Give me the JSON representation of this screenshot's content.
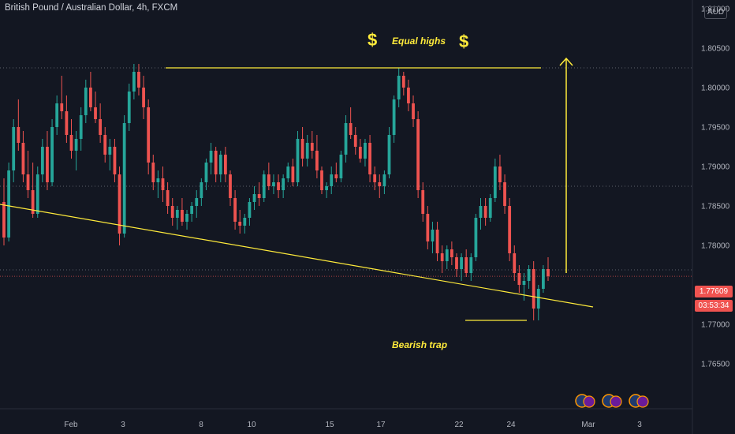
{
  "header": {
    "title": "British Pound / Australian Dollar, 4h, FXCM",
    "currency_badge": "AUD"
  },
  "price_tags": {
    "last_price": "1.77609",
    "countdown": "03:53:34"
  },
  "annotations": {
    "equal_highs": "Equal highs",
    "dollar_symbol": "$",
    "bearish_trap": "Bearish trap"
  },
  "colors": {
    "background": "#131722",
    "up_candle": "#26a69a",
    "down_candle": "#ef5350",
    "annotation": "#ffeb3b",
    "grid": "#363a45",
    "axis_text": "#b2b5be"
  },
  "chart_data": {
    "type": "candlestick",
    "symbol": "GBPAUD",
    "timeframe": "4h",
    "source": "FXCM",
    "y_axis": {
      "ticks": [
        "1.81000",
        "1.80500",
        "1.80000",
        "1.79500",
        "1.79000",
        "1.78500",
        "1.78000",
        "1.77000",
        "1.76500"
      ],
      "range": [
        1.7615,
        1.8105
      ],
      "position": "right"
    },
    "x_axis": {
      "ticks": [
        "Feb",
        "3",
        "8",
        "10",
        "15",
        "17",
        "22",
        "24",
        "Mar",
        "3"
      ]
    },
    "horizontal_levels": [
      1.8025,
      1.7875,
      1.7769
    ],
    "equal_highs_level": 1.8025,
    "trendline": {
      "from": [
        "start",
        1.7852
      ],
      "to": [
        "Mar",
        1.7722
      ]
    },
    "bearish_trap_level": 1.7705,
    "target_arrow": {
      "from": 1.7765,
      "to": 1.8037
    },
    "last_price": 1.77609,
    "candles": [
      [
        1.7855,
        1.7885,
        1.78,
        1.781
      ],
      [
        1.781,
        1.7905,
        1.7805,
        1.7895
      ],
      [
        1.7895,
        1.796,
        1.788,
        1.795
      ],
      [
        1.795,
        1.7985,
        1.792,
        1.793
      ],
      [
        1.793,
        1.7945,
        1.788,
        1.789
      ],
      [
        1.789,
        1.792,
        1.786,
        1.787
      ],
      [
        1.787,
        1.7905,
        1.7835,
        1.784
      ],
      [
        1.784,
        1.79,
        1.7835,
        1.789
      ],
      [
        1.789,
        1.7935,
        1.788,
        1.7925
      ],
      [
        1.7925,
        1.7945,
        1.787,
        1.788
      ],
      [
        1.788,
        1.796,
        1.7875,
        1.795
      ],
      [
        1.795,
        1.799,
        1.794,
        1.798
      ],
      [
        1.798,
        1.8015,
        1.796,
        1.797
      ],
      [
        1.797,
        1.799,
        1.793,
        1.794
      ],
      [
        1.794,
        1.796,
        1.791,
        1.792
      ],
      [
        1.792,
        1.7945,
        1.7895,
        1.7935
      ],
      [
        1.7935,
        1.7975,
        1.792,
        1.7965
      ],
      [
        1.7965,
        1.801,
        1.7955,
        1.8
      ],
      [
        1.8,
        1.802,
        1.797,
        1.7975
      ],
      [
        1.7975,
        1.7995,
        1.7955,
        1.796
      ],
      [
        1.796,
        1.798,
        1.793,
        1.794
      ],
      [
        1.794,
        1.795,
        1.7905,
        1.7915
      ],
      [
        1.7915,
        1.7935,
        1.7895,
        1.7925
      ],
      [
        1.7925,
        1.7935,
        1.788,
        1.789
      ],
      [
        1.789,
        1.79,
        1.78,
        1.7815
      ],
      [
        1.7815,
        1.7965,
        1.781,
        1.7955
      ],
      [
        1.7955,
        1.8005,
        1.7945,
        1.7995
      ],
      [
        1.7995,
        1.803,
        1.7985,
        1.802
      ],
      [
        1.802,
        1.803,
        1.799,
        1.8
      ],
      [
        1.8,
        1.8015,
        1.796,
        1.7975
      ],
      [
        1.7975,
        1.7985,
        1.789,
        1.7905
      ],
      [
        1.7905,
        1.7915,
        1.787,
        1.788
      ],
      [
        1.788,
        1.7895,
        1.786,
        1.7885
      ],
      [
        1.7885,
        1.79,
        1.7855,
        1.787
      ],
      [
        1.787,
        1.788,
        1.784,
        1.785
      ],
      [
        1.785,
        1.786,
        1.7825,
        1.7835
      ],
      [
        1.7835,
        1.785,
        1.782,
        1.7845
      ],
      [
        1.7845,
        1.786,
        1.7825,
        1.783
      ],
      [
        1.783,
        1.7845,
        1.782,
        1.784
      ],
      [
        1.784,
        1.7855,
        1.783,
        1.785
      ],
      [
        1.785,
        1.787,
        1.7835,
        1.786
      ],
      [
        1.786,
        1.7885,
        1.785,
        1.788
      ],
      [
        1.788,
        1.791,
        1.787,
        1.7905
      ],
      [
        1.7905,
        1.793,
        1.789,
        1.792
      ],
      [
        1.792,
        1.7925,
        1.788,
        1.789
      ],
      [
        1.789,
        1.792,
        1.788,
        1.7915
      ],
      [
        1.7915,
        1.7925,
        1.788,
        1.789
      ],
      [
        1.789,
        1.7895,
        1.785,
        1.786
      ],
      [
        1.786,
        1.787,
        1.782,
        1.783
      ],
      [
        1.783,
        1.7845,
        1.7815,
        1.7825
      ],
      [
        1.7825,
        1.784,
        1.7815,
        1.7835
      ],
      [
        1.7835,
        1.786,
        1.7825,
        1.7855
      ],
      [
        1.7855,
        1.7875,
        1.7845,
        1.7865
      ],
      [
        1.7865,
        1.788,
        1.785,
        1.786
      ],
      [
        1.786,
        1.7895,
        1.7855,
        1.789
      ],
      [
        1.789,
        1.7905,
        1.787,
        1.7875
      ],
      [
        1.7875,
        1.789,
        1.7865,
        1.788
      ],
      [
        1.788,
        1.789,
        1.786,
        1.787
      ],
      [
        1.787,
        1.789,
        1.786,
        1.7885
      ],
      [
        1.7885,
        1.7905,
        1.788,
        1.79
      ],
      [
        1.79,
        1.791,
        1.7875,
        1.788
      ],
      [
        1.788,
        1.7945,
        1.7875,
        1.7935
      ],
      [
        1.7935,
        1.795,
        1.79,
        1.791
      ],
      [
        1.791,
        1.794,
        1.79,
        1.793
      ],
      [
        1.793,
        1.7945,
        1.791,
        1.792
      ],
      [
        1.792,
        1.794,
        1.7885,
        1.7895
      ],
      [
        1.7895,
        1.79,
        1.7865,
        1.787
      ],
      [
        1.787,
        1.788,
        1.786,
        1.7875
      ],
      [
        1.7875,
        1.79,
        1.7865,
        1.789
      ],
      [
        1.789,
        1.7905,
        1.788,
        1.7885
      ],
      [
        1.7885,
        1.792,
        1.788,
        1.7915
      ],
      [
        1.7915,
        1.7965,
        1.7905,
        1.7955
      ],
      [
        1.7955,
        1.7975,
        1.7935,
        1.794
      ],
      [
        1.794,
        1.795,
        1.7915,
        1.7925
      ],
      [
        1.7925,
        1.7935,
        1.7905,
        1.791
      ],
      [
        1.791,
        1.7935,
        1.79,
        1.793
      ],
      [
        1.793,
        1.794,
        1.788,
        1.789
      ],
      [
        1.789,
        1.79,
        1.787,
        1.788
      ],
      [
        1.788,
        1.789,
        1.786,
        1.7875
      ],
      [
        1.7875,
        1.7895,
        1.7865,
        1.789
      ],
      [
        1.789,
        1.795,
        1.7885,
        1.794
      ],
      [
        1.794,
        1.799,
        1.793,
        1.7985
      ],
      [
        1.7985,
        1.8025,
        1.7975,
        1.8015
      ],
      [
        1.8015,
        1.802,
        1.799,
        1.8
      ],
      [
        1.8,
        1.801,
        1.797,
        1.798
      ],
      [
        1.798,
        1.799,
        1.795,
        1.796
      ],
      [
        1.796,
        1.797,
        1.786,
        1.787
      ],
      [
        1.787,
        1.788,
        1.783,
        1.784
      ],
      [
        1.784,
        1.785,
        1.7795,
        1.7805
      ],
      [
        1.7805,
        1.783,
        1.779,
        1.782
      ],
      [
        1.782,
        1.783,
        1.778,
        1.779
      ],
      [
        1.779,
        1.78,
        1.7765,
        1.778
      ],
      [
        1.778,
        1.78,
        1.777,
        1.7795
      ],
      [
        1.7795,
        1.7805,
        1.7775,
        1.7785
      ],
      [
        1.7785,
        1.779,
        1.776,
        1.777
      ],
      [
        1.777,
        1.779,
        1.7755,
        1.7785
      ],
      [
        1.7785,
        1.7795,
        1.776,
        1.7765
      ],
      [
        1.7765,
        1.779,
        1.7755,
        1.7785
      ],
      [
        1.7785,
        1.784,
        1.778,
        1.7835
      ],
      [
        1.7835,
        1.786,
        1.782,
        1.785
      ],
      [
        1.785,
        1.786,
        1.7825,
        1.7835
      ],
      [
        1.7835,
        1.7865,
        1.783,
        1.786
      ],
      [
        1.786,
        1.791,
        1.7855,
        1.79
      ],
      [
        1.79,
        1.7915,
        1.787,
        1.788
      ],
      [
        1.788,
        1.789,
        1.784,
        1.785
      ],
      [
        1.785,
        1.786,
        1.778,
        1.779
      ],
      [
        1.779,
        1.78,
        1.7755,
        1.7765
      ],
      [
        1.7765,
        1.7775,
        1.774,
        1.775
      ],
      [
        1.775,
        1.7765,
        1.773,
        1.7755
      ],
      [
        1.7755,
        1.7775,
        1.7745,
        1.777
      ],
      [
        1.777,
        1.778,
        1.7705,
        1.772
      ],
      [
        1.772,
        1.775,
        1.7705,
        1.7745
      ],
      [
        1.7745,
        1.7775,
        1.774,
        1.777
      ],
      [
        1.777,
        1.7785,
        1.7755,
        1.7761
      ]
    ]
  }
}
